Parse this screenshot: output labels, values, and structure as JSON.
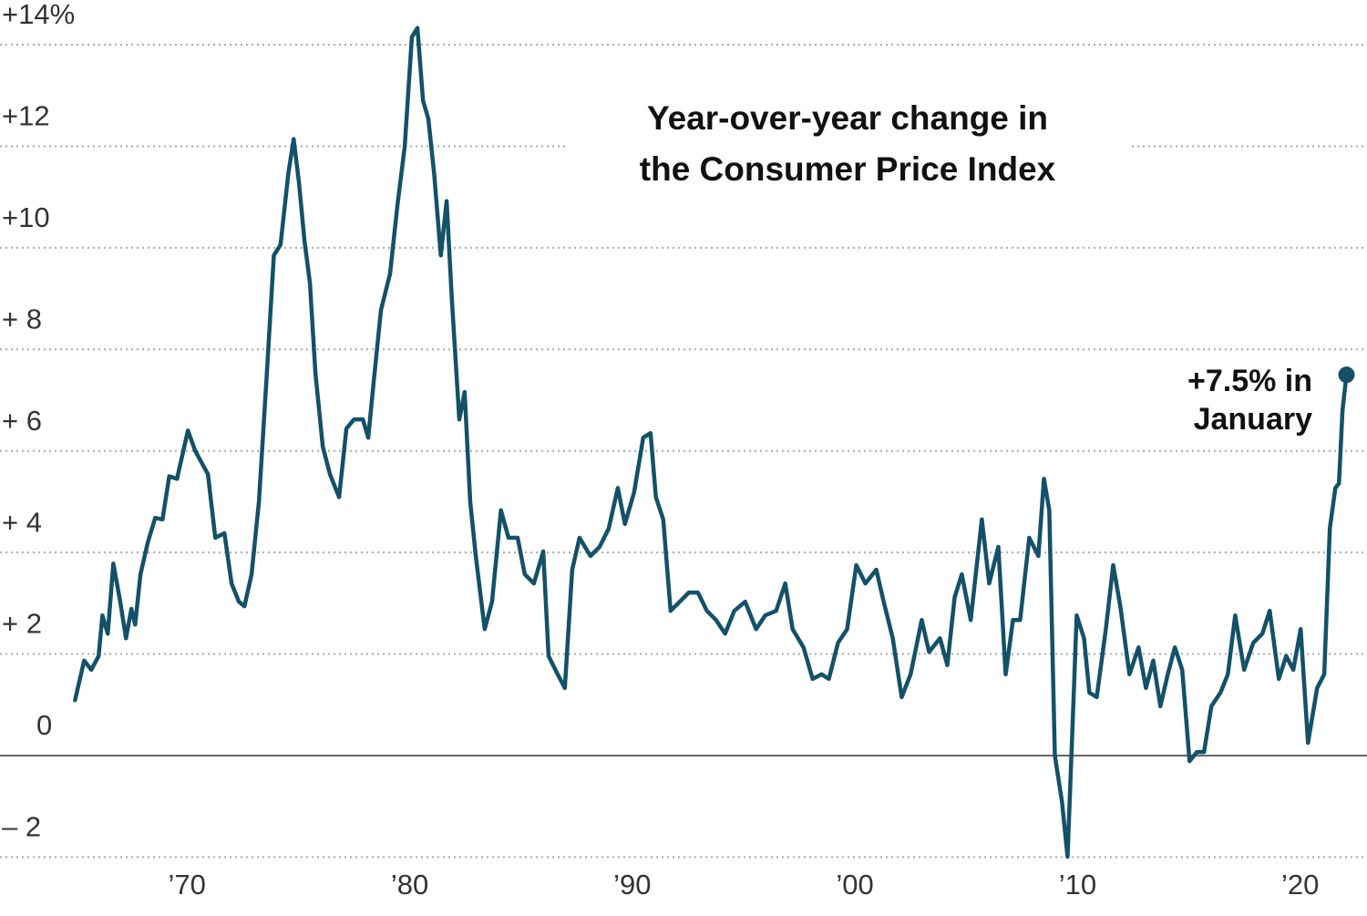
{
  "chart_data": {
    "type": "line",
    "title": [
      "Year-over-year change in",
      "the Consumer Price Index"
    ],
    "annotation": [
      "+7.5% in",
      "January"
    ],
    "color": "#135169",
    "grid": true,
    "xlim": [
      1961.6,
      2023
    ],
    "ylim": [
      -3.07,
      14.88
    ],
    "xticks": [
      {
        "value": 1970,
        "label": "’70"
      },
      {
        "value": 1980,
        "label": "’80"
      },
      {
        "value": 1990,
        "label": "’90"
      },
      {
        "value": 2000,
        "label": "’00"
      },
      {
        "value": 2010,
        "label": "’10"
      },
      {
        "value": 2020,
        "label": "’20"
      }
    ],
    "yticks": [
      {
        "value": 14,
        "label": "+14%"
      },
      {
        "value": 12,
        "label": "+12"
      },
      {
        "value": 10,
        "label": "+10"
      },
      {
        "value": 8,
        "label": "+  8"
      },
      {
        "value": 6,
        "label": "+  6"
      },
      {
        "value": 4,
        "label": "+  4"
      },
      {
        "value": 2,
        "label": "+  2"
      },
      0,
      {
        "value": -2,
        "label": "–  2"
      }
    ],
    "x": [
      1964.97,
      1965.38,
      1965.7,
      1966.03,
      1966.2,
      1966.44,
      1966.69,
      1967.0,
      1967.26,
      1967.5,
      1967.67,
      1967.91,
      1968.24,
      1968.57,
      1968.9,
      1969.2,
      1969.55,
      1970.04,
      1970.37,
      1970.94,
      1971.27,
      1971.68,
      1972.0,
      1972.33,
      1972.58,
      1972.9,
      1973.23,
      1973.56,
      1973.9,
      1974.2,
      1974.55,
      1974.79,
      1975.03,
      1975.28,
      1975.52,
      1975.77,
      1976.1,
      1976.42,
      1976.83,
      1977.16,
      1977.5,
      1977.9,
      1978.14,
      1978.38,
      1978.71,
      1979.12,
      1979.45,
      1979.78,
      1980.1,
      1980.35,
      1980.6,
      1980.84,
      1981.1,
      1981.4,
      1981.66,
      1981.9,
      1982.23,
      1982.47,
      1982.72,
      1982.97,
      1983.37,
      1983.7,
      1984.1,
      1984.44,
      1984.85,
      1985.17,
      1985.58,
      1986.0,
      1986.24,
      1986.65,
      1986.97,
      1987.3,
      1987.63,
      1988.12,
      1988.53,
      1988.94,
      1989.35,
      1989.67,
      1990.08,
      1990.49,
      1990.82,
      1991.06,
      1991.39,
      1991.72,
      1992.13,
      1992.54,
      1992.95,
      1993.35,
      1993.76,
      1994.17,
      1994.58,
      1995.07,
      1995.56,
      1995.97,
      1996.46,
      1996.87,
      1997.2,
      1997.69,
      1998.1,
      1998.5,
      1998.83,
      1999.24,
      1999.65,
      2000.06,
      2000.47,
      2000.96,
      2001.29,
      2001.7,
      2002.1,
      2002.5,
      2003.0,
      2003.33,
      2003.82,
      2004.15,
      2004.48,
      2004.8,
      2005.2,
      2005.7,
      2006.03,
      2006.44,
      2006.77,
      2007.1,
      2007.42,
      2007.83,
      2008.24,
      2008.49,
      2008.73,
      2008.98,
      2009.3,
      2009.55,
      2009.8,
      2009.96,
      2010.29,
      2010.53,
      2010.86,
      2011.27,
      2011.6,
      2011.92,
      2012.33,
      2012.74,
      2013.07,
      2013.4,
      2013.72,
      2014.05,
      2014.37,
      2014.7,
      2015.03,
      2015.36,
      2015.68,
      2016.01,
      2016.42,
      2016.75,
      2017.08,
      2017.48,
      2017.89,
      2018.3,
      2018.63,
      2019.04,
      2019.37,
      2019.69,
      2020.02,
      2020.35,
      2020.76,
      2021.08,
      2021.33,
      2021.58,
      2021.74,
      2021.9,
      2022.08
    ],
    "values": [
      1.09,
      1.87,
      1.69,
      1.96,
      2.76,
      2.4,
      3.78,
      3.03,
      2.31,
      2.89,
      2.58,
      3.57,
      4.2,
      4.68,
      4.65,
      5.5,
      5.45,
      6.4,
      6.0,
      5.54,
      4.29,
      4.38,
      3.39,
      3.03,
      2.94,
      3.57,
      5.0,
      7.34,
      9.85,
      10.06,
      11.46,
      12.14,
      11.28,
      10.12,
      9.31,
      7.52,
      6.08,
      5.54,
      5.09,
      6.44,
      6.62,
      6.62,
      6.26,
      7.34,
      8.77,
      9.49,
      10.83,
      12.0,
      14.15,
      14.33,
      12.9,
      12.54,
      11.46,
      9.85,
      10.92,
      8.95,
      6.62,
      7.16,
      5.0,
      3.93,
      2.49,
      3.03,
      4.83,
      4.29,
      4.29,
      3.57,
      3.39,
      4.02,
      1.96,
      1.6,
      1.33,
      3.66,
      4.29,
      3.93,
      4.11,
      4.47,
      5.27,
      4.56,
      5.18,
      6.26,
      6.35,
      5.09,
      4.65,
      2.85,
      3.03,
      3.21,
      3.21,
      2.85,
      2.67,
      2.4,
      2.85,
      3.03,
      2.49,
      2.76,
      2.85,
      3.39,
      2.49,
      2.13,
      1.51,
      1.6,
      1.51,
      2.22,
      2.49,
      3.75,
      3.39,
      3.66,
      3.03,
      2.31,
      1.15,
      1.6,
      2.67,
      2.04,
      2.31,
      1.78,
      3.12,
      3.57,
      2.67,
      4.65,
      3.39,
      4.11,
      1.6,
      2.67,
      2.67,
      4.29,
      3.93,
      5.45,
      4.83,
      0,
      -0.91,
      -1.99,
      0.88,
      2.76,
      2.31,
      1.24,
      1.15,
      2.49,
      3.75,
      2.94,
      1.6,
      2.13,
      1.33,
      1.87,
      0.97,
      1.6,
      2.13,
      1.69,
      -0.11,
      0.07,
      0.07,
      0.97,
      1.24,
      1.6,
      2.76,
      1.69,
      2.22,
      2.4,
      2.85,
      1.51,
      1.96,
      1.69,
      2.49,
      0.25,
      1.33,
      1.6,
      4.47,
      5.27,
      5.36,
      6.8,
      7.5
    ]
  }
}
